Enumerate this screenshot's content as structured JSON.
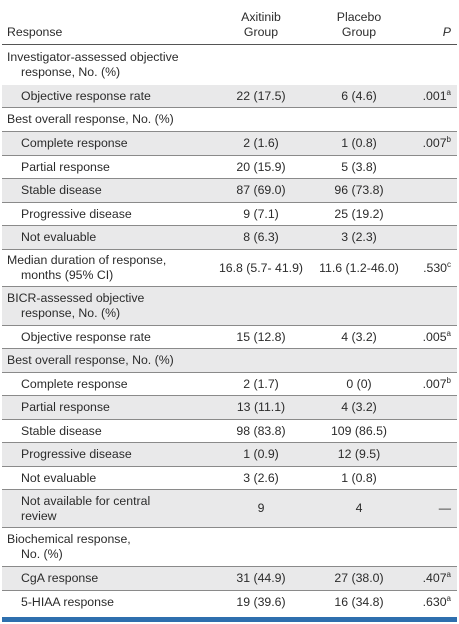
{
  "header": {
    "response": "Response",
    "axitinib_line1": "Axitinib",
    "axitinib_line2": "Group",
    "placebo_line1": "Placebo",
    "placebo_line2": "Group",
    "p": "P"
  },
  "rows": [
    {
      "label": "Investigator-assessed objective",
      "label2": "response, No. (%)",
      "axitinib": "",
      "placebo": "",
      "p": "",
      "sup": ""
    },
    {
      "label": "Objective response rate",
      "axitinib": "22 (17.5)",
      "placebo": "6 (4.6)",
      "p": ".001",
      "sup": "a"
    },
    {
      "label": "Best overall response, No. (%)",
      "axitinib": "",
      "placebo": "",
      "p": "",
      "sup": ""
    },
    {
      "label": "Complete response",
      "axitinib": "2 (1.6)",
      "placebo": "1 (0.8)",
      "p": ".007",
      "sup": "b"
    },
    {
      "label": "Partial response",
      "axitinib": "20 (15.9)",
      "placebo": "5 (3.8)",
      "p": "",
      "sup": ""
    },
    {
      "label": "Stable disease",
      "axitinib": "87 (69.0)",
      "placebo": "96 (73.8)",
      "p": "",
      "sup": ""
    },
    {
      "label": "Progressive disease",
      "axitinib": "9 (7.1)",
      "placebo": "25 (19.2)",
      "p": "",
      "sup": ""
    },
    {
      "label": "Not evaluable",
      "axitinib": "8 (6.3)",
      "placebo": "3 (2.3)",
      "p": "",
      "sup": ""
    },
    {
      "label": "Median duration of response,",
      "label2": "months (95% CI)",
      "axitinib": "16.8 (5.7- 41.9)",
      "placebo": "11.6 (1.2-46.0)",
      "p": ".530",
      "sup": "c"
    },
    {
      "label": "BICR-assessed objective",
      "label2": "response, No. (%)",
      "axitinib": "",
      "placebo": "",
      "p": "",
      "sup": ""
    },
    {
      "label": "Objective response rate",
      "axitinib": "15 (12.8)",
      "placebo": "4 (3.2)",
      "p": ".005",
      "sup": "a"
    },
    {
      "label": "Best overall response, No. (%)",
      "axitinib": "",
      "placebo": "",
      "p": "",
      "sup": ""
    },
    {
      "label": "Complete response",
      "axitinib": "2 (1.7)",
      "placebo": "0 (0)",
      "p": ".007",
      "sup": "b"
    },
    {
      "label": "Partial response",
      "axitinib": "13 (11.1)",
      "placebo": "4 (3.2)",
      "p": "",
      "sup": ""
    },
    {
      "label": "Stable disease",
      "axitinib": "98 (83.8)",
      "placebo": "109 (86.5)",
      "p": "",
      "sup": ""
    },
    {
      "label": "Progressive disease",
      "axitinib": "1 (0.9)",
      "placebo": "12 (9.5)",
      "p": "",
      "sup": ""
    },
    {
      "label": "Not evaluable",
      "axitinib": "3 (2.6)",
      "placebo": "1 (0.8)",
      "p": "",
      "sup": ""
    },
    {
      "label": "Not available for central",
      "label2": "review",
      "axitinib": "9",
      "placebo": "4",
      "p": "—",
      "sup": ""
    },
    {
      "label": "Biochemical response,",
      "label2": "No. (%)",
      "axitinib": "",
      "placebo": "",
      "p": "",
      "sup": ""
    },
    {
      "label": "CgA response",
      "axitinib": "31 (44.9)",
      "placebo": "27 (38.0)",
      "p": ".407",
      "sup": "a"
    },
    {
      "label": "5-HIAA response",
      "axitinib": "19 (39.6)",
      "placebo": "16 (34.8)",
      "p": ".630",
      "sup": "a"
    }
  ]
}
